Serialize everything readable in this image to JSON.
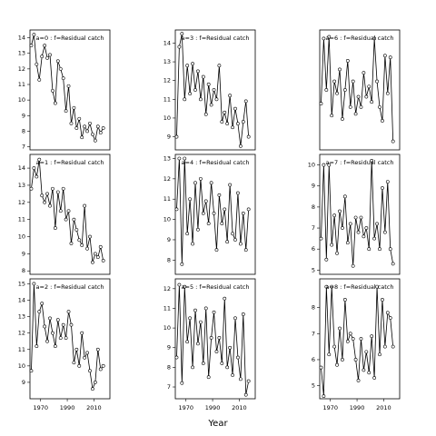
{
  "x_label": "Year",
  "chart_data": [
    {
      "type": "line",
      "title": "a=0 : f=Residual catch",
      "color": "#000000",
      "x": [
        1963,
        1965,
        1967,
        1969,
        1971,
        1973,
        1975,
        1977,
        1979,
        1981,
        1983,
        1985,
        1987,
        1989,
        1991,
        1993,
        1995,
        1997,
        1999,
        2001,
        2003,
        2005,
        2007,
        2009,
        2011,
        2013,
        2015,
        2017
      ],
      "values": [
        13.5,
        14.2,
        12.3,
        11.3,
        12.8,
        13.5,
        12.7,
        12.9,
        10.6,
        9.8,
        12.5,
        12.0,
        11.4,
        9.3,
        10.9,
        8.5,
        9.5,
        8.2,
        8.8,
        7.6,
        8.3,
        8.0,
        8.5,
        7.8,
        7.4,
        8.3,
        7.9,
        8.2
      ],
      "xlim": [
        1962,
        2022
      ],
      "ylim": [
        6.8,
        14.5
      ],
      "yticks": [
        7,
        8,
        9,
        10,
        11,
        12,
        13,
        14
      ]
    },
    {
      "type": "line",
      "title": "a=1 : f=Residual catch",
      "color": "#000000",
      "x": [
        1963,
        1965,
        1967,
        1969,
        1971,
        1973,
        1975,
        1977,
        1979,
        1981,
        1983,
        1985,
        1987,
        1989,
        1991,
        1993,
        1995,
        1997,
        1999,
        2001,
        2003,
        2005,
        2007,
        2009,
        2011,
        2013,
        2015,
        2017
      ],
      "values": [
        12.8,
        14.0,
        13.5,
        14.5,
        12.4,
        12.0,
        12.5,
        11.8,
        12.8,
        10.5,
        12.6,
        11.5,
        12.8,
        11.0,
        11.5,
        9.6,
        11.0,
        10.4,
        9.8,
        9.5,
        11.8,
        9.3,
        10.0,
        8.5,
        9.0,
        8.8,
        9.4,
        8.6
      ],
      "xlim": [
        1962,
        2022
      ],
      "ylim": [
        7.8,
        14.8
      ],
      "yticks": [
        8,
        9,
        10,
        11,
        12,
        13,
        14
      ]
    },
    {
      "type": "line",
      "title": "a=2 : f=Residual catch",
      "color": "#000000",
      "x": [
        1963,
        1965,
        1967,
        1969,
        1971,
        1973,
        1975,
        1977,
        1979,
        1981,
        1983,
        1985,
        1987,
        1989,
        1991,
        1993,
        1995,
        1997,
        1999,
        2001,
        2003,
        2005,
        2007,
        2009,
        2011,
        2013,
        2015,
        2017
      ],
      "values": [
        9.7,
        15.0,
        11.2,
        13.3,
        13.8,
        12.4,
        11.5,
        12.9,
        12.0,
        11.2,
        12.8,
        11.7,
        12.5,
        11.7,
        13.3,
        12.5,
        10.2,
        11.0,
        10.0,
        12.0,
        10.5,
        10.8,
        9.7,
        8.6,
        9.0,
        11.0,
        9.8,
        10.0
      ],
      "xlim": [
        1962,
        2022
      ],
      "ylim": [
        8,
        15.3
      ],
      "yticks": [
        9,
        10,
        11,
        12,
        13,
        14,
        15
      ],
      "xticks": [
        1970,
        1990,
        2010
      ]
    },
    {
      "type": "line",
      "title": "a=3 : f=Residual catch",
      "color": "#000000",
      "x": [
        1963,
        1965,
        1967,
        1969,
        1971,
        1973,
        1975,
        1977,
        1979,
        1981,
        1983,
        1985,
        1987,
        1989,
        1991,
        1993,
        1995,
        1997,
        1999,
        2001,
        2003,
        2005,
        2007,
        2009,
        2011,
        2013,
        2015,
        2017
      ],
      "values": [
        9.0,
        13.8,
        14.5,
        11.0,
        12.8,
        11.3,
        12.9,
        11.5,
        12.5,
        11.0,
        12.2,
        10.2,
        11.8,
        10.7,
        11.5,
        11.0,
        12.8,
        9.8,
        10.3,
        9.7,
        11.2,
        9.5,
        10.5,
        9.7,
        8.5,
        9.8,
        10.9,
        9.0
      ],
      "xlim": [
        1962,
        2022
      ],
      "ylim": [
        8.3,
        14.7
      ],
      "yticks": [
        9,
        10,
        11,
        12,
        13,
        14
      ]
    },
    {
      "type": "line",
      "title": "a=4 : f=Residual catch",
      "color": "#000000",
      "x": [
        1963,
        1965,
        1967,
        1969,
        1971,
        1973,
        1975,
        1977,
        1979,
        1981,
        1983,
        1985,
        1987,
        1989,
        1991,
        1993,
        1995,
        1997,
        1999,
        2001,
        2003,
        2005,
        2007,
        2009,
        2011,
        2013,
        2015,
        2017
      ],
      "values": [
        10.5,
        13.0,
        7.8,
        13.0,
        9.3,
        11.0,
        8.8,
        11.8,
        9.5,
        12.0,
        10.3,
        10.9,
        9.8,
        11.8,
        10.3,
        8.5,
        11.2,
        9.8,
        10.5,
        8.9,
        11.7,
        9.3,
        9.0,
        11.3,
        8.8,
        10.3,
        8.5,
        10.5
      ],
      "xlim": [
        1962,
        2022
      ],
      "ylim": [
        7.3,
        13.2
      ],
      "yticks": [
        8,
        9,
        10,
        11,
        12,
        13
      ]
    },
    {
      "type": "line",
      "title": "a=5 : f=Residual catch",
      "color": "#000000",
      "x": [
        1963,
        1965,
        1967,
        1969,
        1971,
        1973,
        1975,
        1977,
        1979,
        1981,
        1983,
        1985,
        1987,
        1989,
        1991,
        1993,
        1995,
        1997,
        1999,
        2001,
        2003,
        2005,
        2007,
        2009,
        2011,
        2013,
        2015,
        2017
      ],
      "values": [
        8.5,
        12.2,
        7.2,
        12.1,
        9.3,
        10.5,
        8.0,
        10.9,
        9.2,
        10.3,
        8.2,
        11.0,
        7.5,
        9.5,
        10.8,
        8.8,
        9.5,
        8.2,
        11.5,
        8.0,
        9.0,
        7.6,
        10.5,
        8.5,
        7.4,
        10.7,
        6.6,
        7.3
      ],
      "xlim": [
        1962,
        2022
      ],
      "ylim": [
        6.4,
        12.5
      ],
      "yticks": [
        7,
        8,
        9,
        10,
        11,
        12
      ],
      "xticks": [
        1970,
        1990,
        2010
      ]
    },
    {
      "type": "line",
      "title": "a=6 : f=Residual catch",
      "color": "#000000",
      "x": [
        1963,
        1965,
        1967,
        1969,
        1971,
        1973,
        1975,
        1977,
        1979,
        1981,
        1983,
        1985,
        1987,
        1989,
        1991,
        1993,
        1995,
        1997,
        1999,
        2001,
        2003,
        2005,
        2007,
        2009,
        2011,
        2013,
        2015,
        2017
      ],
      "values": [
        7.2,
        11.0,
        8.0,
        11.1,
        6.5,
        8.5,
        7.8,
        9.2,
        6.3,
        8.0,
        9.7,
        7.0,
        8.5,
        6.6,
        7.6,
        7.0,
        9.0,
        7.6,
        8.2,
        7.3,
        11.0,
        8.5,
        7.0,
        6.2,
        10.0,
        7.8,
        9.9,
        5.0
      ],
      "xlim": [
        1962,
        2022
      ],
      "ylim": [
        4.5,
        11.5
      ]
    },
    {
      "type": "line",
      "title": "a=7 : f=Residual catch",
      "color": "#000000",
      "x": [
        1963,
        1965,
        1967,
        1969,
        1971,
        1973,
        1975,
        1977,
        1979,
        1981,
        1983,
        1985,
        1987,
        1989,
        1991,
        1993,
        1995,
        1997,
        1999,
        2001,
        2003,
        2005,
        2007,
        2009,
        2011,
        2013,
        2015,
        2017
      ],
      "values": [
        6.5,
        10.0,
        5.5,
        10.0,
        6.2,
        7.6,
        5.8,
        7.8,
        7.0,
        8.5,
        6.3,
        7.2,
        5.2,
        7.5,
        6.8,
        7.5,
        6.6,
        7.0,
        6.0,
        10.2,
        6.5,
        7.2,
        6.0,
        8.9,
        6.8,
        9.2,
        6.0,
        5.3
      ],
      "xlim": [
        1962,
        2022
      ],
      "ylim": [
        4.8,
        10.5
      ],
      "yticks": [
        5,
        6,
        7,
        8,
        9,
        10
      ]
    },
    {
      "type": "line",
      "title": "a=8 : f=Residual catch",
      "color": "#000000",
      "x": [
        1963,
        1965,
        1967,
        1969,
        1971,
        1973,
        1975,
        1977,
        1979,
        1981,
        1983,
        1985,
        1987,
        1989,
        1991,
        1993,
        1995,
        1997,
        1999,
        2001,
        2003,
        2005,
        2007,
        2009,
        2011,
        2013,
        2015,
        2017
      ],
      "values": [
        5.7,
        4.6,
        8.8,
        6.2,
        8.8,
        6.5,
        5.8,
        7.2,
        6.0,
        8.3,
        6.7,
        7.0,
        6.8,
        6.0,
        5.2,
        6.8,
        5.6,
        6.3,
        5.5,
        6.9,
        5.3,
        8.8,
        6.2,
        8.3,
        6.5,
        7.8,
        7.6,
        6.5
      ],
      "xlim": [
        1962,
        2022
      ],
      "ylim": [
        4.5,
        9.1
      ],
      "yticks": [
        5,
        6,
        7,
        8
      ],
      "xticks": [
        1970,
        1990,
        2010
      ]
    }
  ]
}
